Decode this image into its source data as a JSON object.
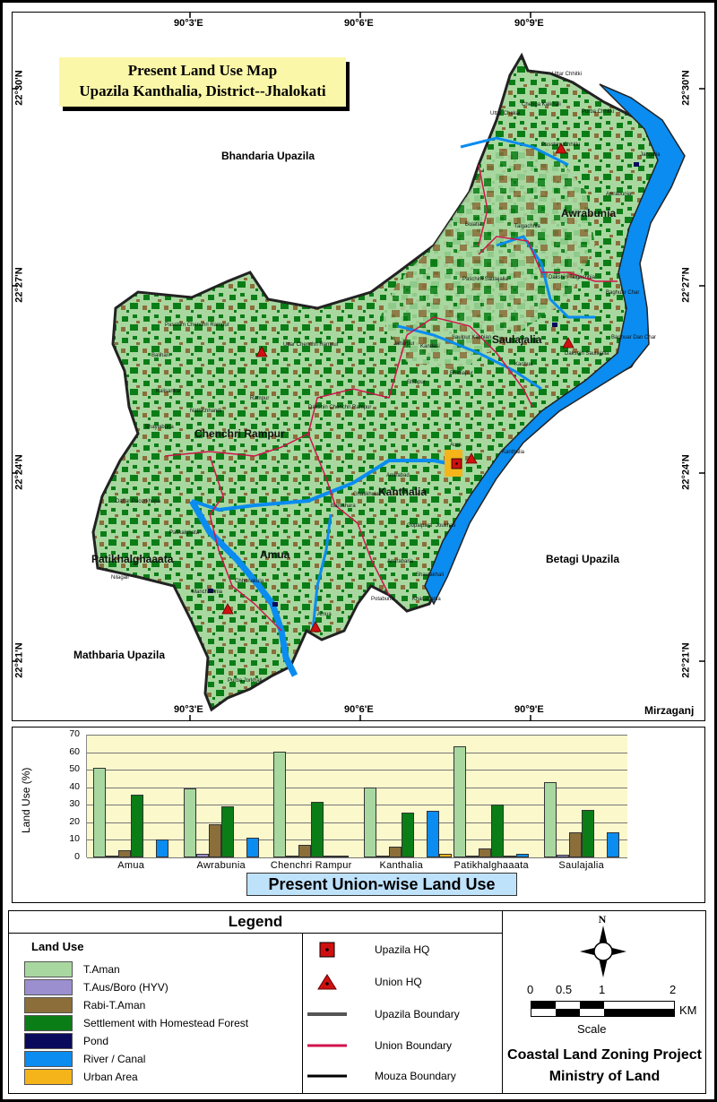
{
  "map": {
    "title_line1": "Present Land Use  Map",
    "title_line2": "Upazila Kanthalia, District--Jhalokati",
    "coordinates": {
      "top_lon": [
        "90°3'E",
        "90°6'E",
        "90°9'E"
      ],
      "bottom_lon": [
        "90°3'E",
        "90°6'E",
        "90°9'E"
      ],
      "left_lat": [
        "22°30'N",
        "22°27'N",
        "22°24'N",
        "22°21'N"
      ],
      "right_lat": [
        "22°30'N",
        "22°27'N",
        "22°24'N",
        "22°21'N"
      ]
    },
    "neighbors": {
      "north": "Bhandaria Upazila",
      "east": "Betagi Upazila",
      "southwest": "Mathbaria Upazila",
      "southeast": "Mirzaganj"
    },
    "unions": [
      "Awrabunia",
      "Saulajalia",
      "Chenchri Rampur",
      "Kanthalia",
      "Amua",
      "Patikhalghaaata"
    ],
    "mouzas": [
      "Uttar Chhitki",
      "Chenga Kaikhali",
      "Purba Chhitki",
      "Uttar Chakai",
      "Paschim Chhitki",
      "Jangalia",
      "Awrabunia",
      "Talgachhia",
      "Bolatia",
      "Paschim Saulajalia",
      "Dakshin Talgachhia",
      "Baghuar Char",
      "Baghuar Dan Char",
      "Dakshin Saulajalia",
      "Kachua",
      "Saulpur Kachian",
      "Kandasi",
      "Jaharpur",
      "Shibpur",
      "Bhatiapur",
      "Uttar Chenchri Rampur",
      "Paschim Chenchri Rampur",
      "Balihari",
      "Kalisankar",
      "Nathichhandi",
      "Rampur",
      "Dakshin Chenchri Rampur",
      "Bhaylabuna",
      "Aura",
      "Kanthalia",
      "Amirabad",
      "Bantahara",
      "Ghatikhola",
      "Daffar Pacurkhupa",
      "Patikalghata",
      "Nilagail",
      "Manchibunia",
      "Chhonakula",
      "Gopalpara",
      "Amua",
      "Joukhali",
      "Amirabaria",
      "Shaulakhali",
      "Potabunia",
      "Khasabania",
      "Purba Jorkhali"
    ]
  },
  "chart_data": {
    "type": "bar",
    "title": "Present Union-wise Land Use",
    "xlabel": "",
    "ylabel": "Land Use (%)",
    "ylim": [
      0,
      70
    ],
    "yticks": [
      0,
      10,
      20,
      30,
      40,
      50,
      60,
      70
    ],
    "grid": true,
    "legend_position": "none",
    "categories": [
      "Amua",
      "Awrabunia",
      "Chenchri Rampur",
      "Kanthalia",
      "Patikhalghaaata",
      "Saulajalia"
    ],
    "series": [
      {
        "name": "T.Aman",
        "color": "#a8d8a0",
        "values": [
          51,
          39.5,
          60.5,
          40,
          63.5,
          43
        ]
      },
      {
        "name": "T.Aus/Boro (HYV)",
        "color": "#9b8fd0",
        "values": [
          0.3,
          1.8,
          0.6,
          0.5,
          0.2,
          1.3
        ]
      },
      {
        "name": "Rabi-T.Aman",
        "color": "#8b6e3a",
        "values": [
          4,
          19,
          7,
          6,
          5,
          14.5
        ]
      },
      {
        "name": "Settlement with Homestead Forest",
        "color": "#0b7d16",
        "values": [
          36,
          29,
          31.5,
          25.5,
          30,
          27
        ]
      },
      {
        "name": "Pond",
        "color": "#0a0a5c",
        "values": [
          0,
          0,
          0.2,
          0,
          0.2,
          0
        ]
      },
      {
        "name": "River / Canal",
        "color": "#0a8cf0",
        "values": [
          10,
          11,
          0.3,
          26.5,
          2,
          14.5
        ]
      },
      {
        "name": "Urban Area",
        "color": "#f5b41a",
        "values": [
          0,
          0,
          0,
          2,
          0,
          0
        ]
      }
    ]
  },
  "legend": {
    "title": "Legend",
    "land_use_heading": "Land Use",
    "land_use": [
      {
        "label": "T.Aman",
        "color": "#a8d8a0"
      },
      {
        "label": "T.Aus/Boro (HYV)",
        "color": "#9b8fd0"
      },
      {
        "label": "Rabi-T.Aman",
        "color": "#8b6e3a"
      },
      {
        "label": "Settlement with Homestead Forest",
        "color": "#0b7d16"
      },
      {
        "label": "Pond",
        "color": "#0a0a5c"
      },
      {
        "label": "River / Canal",
        "color": "#0a8cf0"
      },
      {
        "label": "Urban Area",
        "color": "#f5b41a"
      }
    ],
    "symbols": [
      {
        "label": "Upazila HQ",
        "icon": "red-square-dot-icon"
      },
      {
        "label": "Union HQ",
        "icon": "red-triangle-dot-icon"
      },
      {
        "label": "Upazila Boundary",
        "color": "#555555"
      },
      {
        "label": "Union Boundary",
        "color": "#d0134c"
      },
      {
        "label": "Mouza Boundary",
        "color": "#000000"
      }
    ],
    "north_label": "N",
    "scale": {
      "ticks": [
        "0",
        "0.5",
        "1",
        "2"
      ],
      "unit": "KM",
      "label": "Scale"
    },
    "credit_line1": "Coastal Land Zoning Project",
    "credit_line2": "Ministry of Land"
  }
}
